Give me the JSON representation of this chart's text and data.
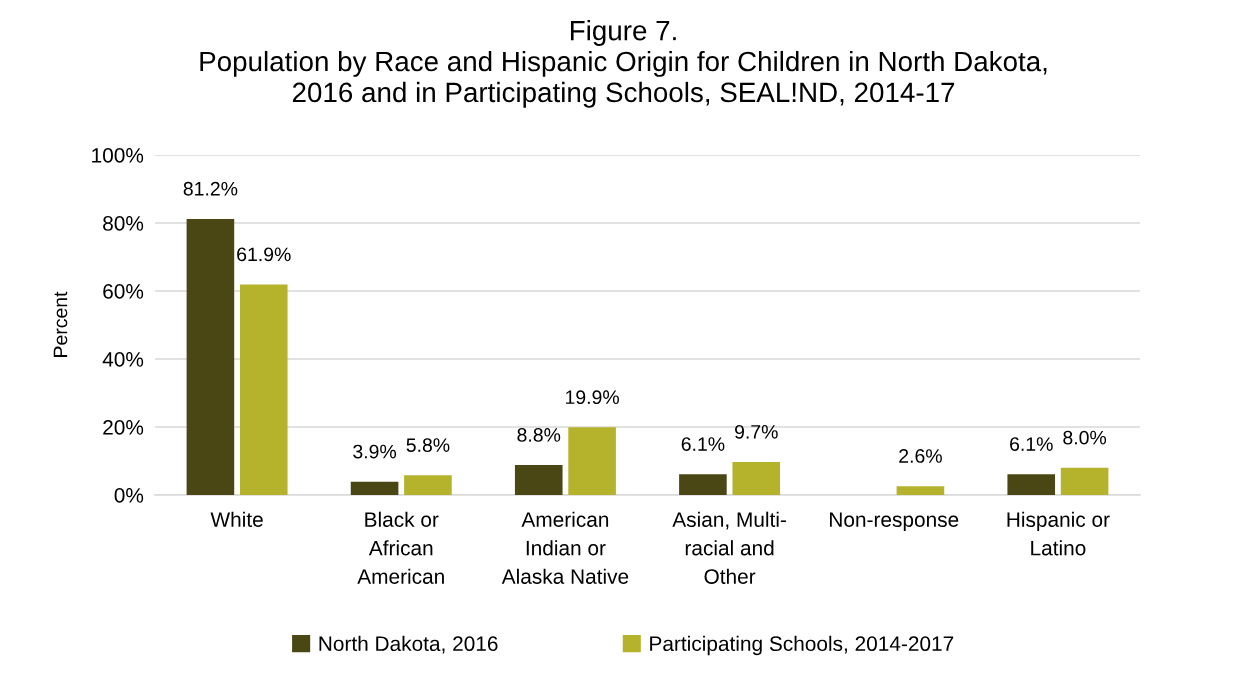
{
  "chart_data": {
    "type": "bar",
    "title": "Figure 7.\nPopulation by Race and Hispanic Origin for Children in North Dakota,\n2016 and in Participating Schools, SEAL!ND, 2014-17",
    "ylabel": "Percent",
    "categories": [
      "White",
      "Black or\nAfrican\nAmerican",
      "American\nIndian or\nAlaska Native",
      "Asian, Multi-\nracial and\nOther",
      "Non-response",
      "Hispanic or\nLatino"
    ],
    "series": [
      {
        "name": "North Dakota, 2016",
        "color": "#4a4714",
        "values": [
          81.2,
          3.9,
          8.8,
          6.1,
          null,
          6.1
        ],
        "value_labels": [
          "81.2%",
          "3.9%",
          "8.8%",
          "6.1%",
          null,
          "6.1%"
        ]
      },
      {
        "name": "Participating Schools, 2014-2017",
        "color": "#b5b22c",
        "values": [
          61.9,
          5.8,
          19.9,
          9.7,
          2.6,
          8.0
        ],
        "value_labels": [
          "61.9%",
          "5.8%",
          "19.9%",
          "9.7%",
          "2.6%",
          "8.0%"
        ]
      }
    ],
    "ylim": [
      0,
      100
    ],
    "yticks": [
      {
        "value": 0,
        "label": "0%"
      },
      {
        "value": 20,
        "label": "20%"
      },
      {
        "value": 40,
        "label": "40%"
      },
      {
        "value": 60,
        "label": "60%"
      },
      {
        "value": 80,
        "label": "80%"
      },
      {
        "value": 100,
        "label": "100%"
      }
    ],
    "grid": "y",
    "legend": "bottom"
  }
}
